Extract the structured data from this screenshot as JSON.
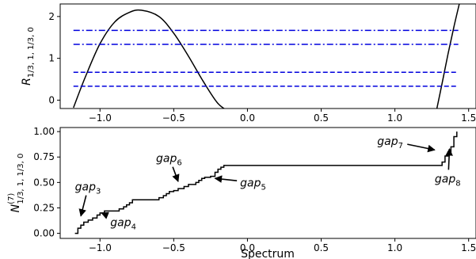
{
  "chart_data": [
    {
      "type": "line",
      "xlim": [
        -1.27,
        1.55
      ],
      "ylim": [
        -0.2,
        2.3
      ],
      "xticks": [
        -1.0,
        -0.5,
        0.0,
        0.5,
        1.0,
        1.5
      ],
      "xtick_labels": [
        "−1.0",
        "−0.5",
        "0.0",
        "0.5",
        "1.0",
        "1.5"
      ],
      "yticks": [
        0,
        1,
        2
      ],
      "ytick_labels": [
        "0",
        "1",
        "2"
      ],
      "ylabel": "R",
      "ylabel_sub": "1/3, 1, 1/3, 0",
      "series": [
        {
          "style": "solid",
          "color": "#000000",
          "x": [
            -1.18,
            -1.1,
            -1.0,
            -0.9,
            -0.8,
            -0.72,
            -0.6,
            -0.5,
            -0.4,
            -0.3,
            -0.2,
            -0.12
          ],
          "y": [
            -0.18,
            0.55,
            1.35,
            1.87,
            2.1,
            2.15,
            2.0,
            1.6,
            1.05,
            0.45,
            -0.08,
            -0.28
          ]
        },
        {
          "style": "solid",
          "color": "#000000",
          "x": [
            1.28,
            1.32,
            1.36,
            1.4,
            1.44
          ],
          "y": [
            -0.28,
            0.4,
            1.1,
            1.75,
            2.35
          ]
        },
        {
          "style": "dashdot",
          "color": "#0000dd",
          "x": [
            -1.18,
            1.43
          ],
          "y": [
            1.667,
            1.667
          ]
        },
        {
          "style": "dashdot",
          "color": "#0000dd",
          "x": [
            -1.18,
            1.43
          ],
          "y": [
            1.333,
            1.333
          ]
        },
        {
          "style": "dashed",
          "color": "#0000dd",
          "x": [
            -1.18,
            1.43
          ],
          "y": [
            0.667,
            0.667
          ]
        },
        {
          "style": "dashed",
          "color": "#0000dd",
          "x": [
            -1.18,
            1.43
          ],
          "y": [
            0.333,
            0.333
          ]
        }
      ]
    },
    {
      "type": "line",
      "xlim": [
        -1.27,
        1.55
      ],
      "ylim": [
        -0.05,
        1.04
      ],
      "xticks": [
        -1.0,
        -0.5,
        0.0,
        0.5,
        1.0,
        1.5
      ],
      "xtick_labels": [
        "−1.0",
        "−0.5",
        "0.0",
        "0.5",
        "1.0",
        "1.5"
      ],
      "yticks": [
        0.0,
        0.25,
        0.5,
        0.75,
        1.0
      ],
      "ytick_labels": [
        "0.00",
        "0.25",
        "0.50",
        "0.75",
        "1.00"
      ],
      "xlabel": "Spectrum",
      "ylabel": "N",
      "ylabel_sup": "(7)",
      "ylabel_sub": "1/3, 1, 1/3, 0",
      "series": [
        {
          "style": "step",
          "color": "#000000",
          "x": [
            -1.17,
            -1.15,
            -1.13,
            -1.11,
            -1.08,
            -1.05,
            -1.02,
            -1.0,
            -0.97,
            -0.95,
            -0.93,
            -0.9,
            -0.87,
            -0.84,
            -0.82,
            -0.8,
            -0.78,
            -0.76,
            -0.74,
            -0.72,
            -0.7,
            -0.67,
            -0.63,
            -0.6,
            -0.57,
            -0.55,
            -0.53,
            -0.5,
            -0.47,
            -0.45,
            -0.43,
            -0.4,
            -0.35,
            -0.33,
            -0.31,
            -0.29,
            -0.27,
            -0.25,
            -0.22,
            -0.2,
            -0.18,
            -0.16,
            1.3,
            1.32,
            1.34,
            1.36,
            1.38,
            1.4,
            1.42
          ],
          "y": [
            0.0,
            0.05,
            0.08,
            0.11,
            0.13,
            0.15,
            0.18,
            0.2,
            0.22,
            0.22,
            0.22,
            0.22,
            0.24,
            0.26,
            0.28,
            0.3,
            0.33,
            0.33,
            0.33,
            0.33,
            0.33,
            0.33,
            0.33,
            0.35,
            0.37,
            0.39,
            0.41,
            0.42,
            0.44,
            0.44,
            0.46,
            0.48,
            0.5,
            0.52,
            0.54,
            0.55,
            0.55,
            0.56,
            0.6,
            0.63,
            0.65,
            0.667,
            0.667,
            0.7,
            0.76,
            0.8,
            0.85,
            0.95,
            1.0
          ]
        }
      ],
      "annotations": [
        {
          "label": "gap",
          "sub": "3",
          "text_x": -1.17,
          "text_y": 0.42,
          "arrow_x": -1.13,
          "arrow_y": 0.17
        },
        {
          "label": "gap",
          "sub": "4",
          "text_x": -0.93,
          "text_y": 0.07,
          "arrow_x": -0.99,
          "arrow_y": 0.2
        },
        {
          "label": "gap",
          "sub": "6",
          "text_x": -0.62,
          "text_y": 0.7,
          "arrow_x": -0.47,
          "arrow_y": 0.51
        },
        {
          "label": "gap",
          "sub": "5",
          "text_x": -0.05,
          "text_y": 0.46,
          "arrow_x": -0.22,
          "arrow_y": 0.54
        },
        {
          "label": "gap",
          "sub": "7",
          "text_x": 0.88,
          "text_y": 0.87,
          "arrow_x": 1.27,
          "arrow_y": 0.82
        },
        {
          "label": "gap",
          "sub": "8",
          "text_x": 1.27,
          "text_y": 0.5,
          "arrow_x": 1.37,
          "arrow_y": 0.83
        }
      ]
    }
  ]
}
